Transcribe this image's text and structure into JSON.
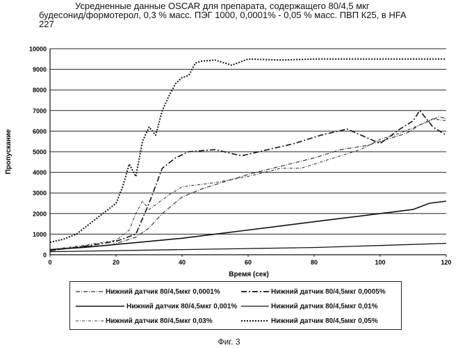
{
  "figure": {
    "title_lines": [
      "Усредненные данные OSCAR для препарата, содержащего 80/4,5 мкг",
      "будесонид/формотерол, 0,3 % масс. ПЭГ 1000, 0,0001% - 0,05 % масс. ПВП К25, в HFA",
      "227"
    ],
    "caption": "Фиг. 3"
  },
  "chart_data": {
    "type": "line",
    "xlabel": "Время (сек)",
    "ylabel": "Пропускание",
    "xlim": [
      0,
      120
    ],
    "ylim": [
      0,
      10000
    ],
    "x_ticks": [
      0,
      20,
      40,
      60,
      80,
      100,
      120
    ],
    "y_ticks": [
      0,
      1000,
      2000,
      3000,
      4000,
      5000,
      6000,
      7000,
      8000,
      9000,
      10000
    ],
    "grid": "horizontal",
    "legend_placement": "bottom",
    "series": [
      {
        "name": "Нижний датчик 80/4,5мкг 0,0001%",
        "points": [
          [
            0,
            200
          ],
          [
            10,
            400
          ],
          [
            18,
            450
          ],
          [
            26,
            850
          ],
          [
            30,
            1300
          ],
          [
            34,
            2000
          ],
          [
            40,
            2800
          ],
          [
            46,
            3200
          ],
          [
            52,
            3500
          ],
          [
            60,
            3900
          ],
          [
            70,
            4300
          ],
          [
            80,
            4700
          ],
          [
            88,
            5100
          ],
          [
            96,
            5300
          ],
          [
            104,
            5700
          ],
          [
            108,
            5900
          ],
          [
            112,
            6300
          ],
          [
            118,
            6700
          ],
          [
            120,
            6600
          ]
        ]
      },
      {
        "name": "Нижний датчик 80/4,5мкг 0,0005%",
        "points": [
          [
            0,
            200
          ],
          [
            10,
            400
          ],
          [
            20,
            650
          ],
          [
            26,
            1000
          ],
          [
            30,
            2500
          ],
          [
            34,
            4200
          ],
          [
            38,
            4700
          ],
          [
            42,
            5000
          ],
          [
            50,
            5100
          ],
          [
            58,
            4800
          ],
          [
            66,
            5100
          ],
          [
            74,
            5400
          ],
          [
            82,
            5800
          ],
          [
            90,
            6100
          ],
          [
            100,
            5400
          ],
          [
            106,
            6100
          ],
          [
            110,
            6500
          ],
          [
            112,
            7000
          ],
          [
            116,
            6200
          ],
          [
            120,
            5800
          ]
        ]
      },
      {
        "name": "Нижний датчик 80/4,5мкг 0,001%",
        "points": [
          [
            0,
            250
          ],
          [
            10,
            350
          ],
          [
            20,
            500
          ],
          [
            30,
            650
          ],
          [
            40,
            800
          ],
          [
            50,
            1000
          ],
          [
            60,
            1200
          ],
          [
            70,
            1400
          ],
          [
            80,
            1600
          ],
          [
            90,
            1800
          ],
          [
            100,
            2000
          ],
          [
            110,
            2200
          ],
          [
            115,
            2500
          ],
          [
            120,
            2600
          ]
        ]
      },
      {
        "name": "Нижний датчик 80/4,5мкг 0,01%",
        "points": [
          [
            0,
            150
          ],
          [
            20,
            200
          ],
          [
            40,
            250
          ],
          [
            60,
            300
          ],
          [
            80,
            350
          ],
          [
            100,
            450
          ],
          [
            120,
            550
          ]
        ]
      },
      {
        "name": "Нижний датчик 80/4,5мкг 0,03%",
        "points": [
          [
            0,
            250
          ],
          [
            10,
            450
          ],
          [
            20,
            700
          ],
          [
            24,
            1200
          ],
          [
            26,
            2000
          ],
          [
            28,
            2600
          ],
          [
            30,
            2200
          ],
          [
            36,
            2900
          ],
          [
            40,
            3300
          ],
          [
            50,
            3500
          ],
          [
            60,
            3800
          ],
          [
            70,
            4200
          ],
          [
            76,
            4200
          ],
          [
            84,
            4600
          ],
          [
            94,
            5100
          ],
          [
            100,
            5600
          ],
          [
            106,
            5900
          ],
          [
            112,
            6300
          ],
          [
            116,
            6600
          ],
          [
            120,
            6500
          ]
        ]
      },
      {
        "name": "Нижний датчик 80/4,5мкг 0,05%",
        "points": [
          [
            0,
            600
          ],
          [
            4,
            750
          ],
          [
            8,
            1000
          ],
          [
            12,
            1500
          ],
          [
            16,
            2000
          ],
          [
            20,
            2500
          ],
          [
            22,
            3300
          ],
          [
            24,
            4400
          ],
          [
            26,
            3800
          ],
          [
            28,
            5500
          ],
          [
            30,
            6200
          ],
          [
            32,
            5800
          ],
          [
            34,
            7000
          ],
          [
            36,
            7700
          ],
          [
            38,
            8300
          ],
          [
            40,
            8600
          ],
          [
            42,
            8700
          ],
          [
            44,
            9300
          ],
          [
            46,
            9400
          ],
          [
            50,
            9450
          ],
          [
            55,
            9200
          ],
          [
            60,
            9500
          ],
          [
            70,
            9450
          ],
          [
            80,
            9500
          ],
          [
            100,
            9500
          ],
          [
            120,
            9500
          ]
        ]
      }
    ]
  }
}
